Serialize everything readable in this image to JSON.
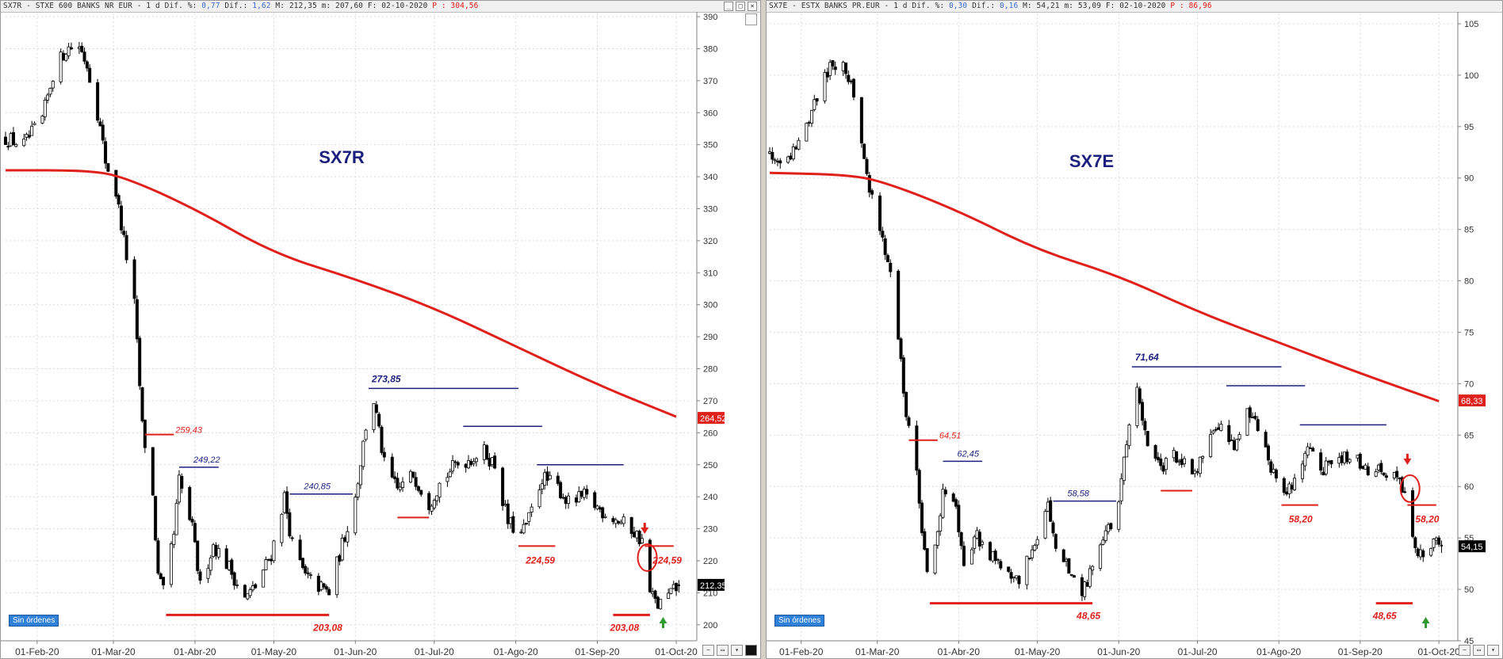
{
  "colors": {
    "ma": "#e0201b",
    "annot_red": "#e0201b",
    "annot_blue": "#1c1f7e",
    "candle": "#000000",
    "arrow_up": "#2e9a2e"
  },
  "status_badge": "Sin órdenes",
  "chart_data": [
    {
      "type": "candlestick",
      "header": {
        "prefix": "SX7R - STXE 600 BANKS NR EUR -  1 d Dif. %: ",
        "pct": "0,77",
        "mid": " Dif.: ",
        "dif": "1,62",
        "rest": " M: 212,35 m: 207,60 F: 02-10-2020 ",
        "pre": "P : 304,56"
      },
      "title": "SX7R",
      "ylim": [
        195,
        391
      ],
      "yticks": [
        200,
        210,
        220,
        230,
        240,
        250,
        260,
        270,
        280,
        290,
        300,
        310,
        320,
        330,
        340,
        350,
        360,
        370,
        380,
        390
      ],
      "ytick_labels": [
        "200",
        "210",
        "220",
        "230",
        "240",
        "250",
        "260",
        "270",
        "280",
        "290",
        "300",
        "310",
        "320",
        "330",
        "340",
        "350",
        "360",
        "370",
        "380",
        "390"
      ],
      "xlim": [
        "2020-01-20",
        "2020-10-07"
      ],
      "x_ticks": [
        "2020-02-01",
        "2020-03-01",
        "2020-04-01",
        "2020-05-01",
        "2020-06-01",
        "2020-07-01",
        "2020-08-01",
        "2020-09-01",
        "2020-10-01"
      ],
      "x_tick_labels": [
        "01-Feb-20",
        "01-Mar-20",
        "01-Abr-20",
        "01-May-20",
        "01-Jun-20",
        "01-Jul-20",
        "01-Ago-20",
        "01-Sep-20",
        "01-Oct-20"
      ],
      "close_series": [
        [
          "2020-01-20",
          352
        ],
        [
          "2020-01-27",
          350
        ],
        [
          "2020-02-03",
          358
        ],
        [
          "2020-02-07",
          372
        ],
        [
          "2020-02-12",
          380
        ],
        [
          "2020-02-17",
          381
        ],
        [
          "2020-02-20",
          375
        ],
        [
          "2020-02-24",
          360
        ],
        [
          "2020-02-27",
          345
        ],
        [
          "2020-03-02",
          335
        ],
        [
          "2020-03-05",
          320
        ],
        [
          "2020-03-09",
          300
        ],
        [
          "2020-03-12",
          262
        ],
        [
          "2020-03-16",
          240
        ],
        [
          "2020-03-18",
          215
        ],
        [
          "2020-03-20",
          210
        ],
        [
          "2020-03-24",
          228
        ],
        [
          "2020-03-26",
          245
        ],
        [
          "2020-03-31",
          230
        ],
        [
          "2020-04-03",
          212
        ],
        [
          "2020-04-08",
          225
        ],
        [
          "2020-04-14",
          218
        ],
        [
          "2020-04-20",
          208
        ],
        [
          "2020-04-24",
          212
        ],
        [
          "2020-04-30",
          222
        ],
        [
          "2020-05-05",
          240
        ],
        [
          "2020-05-08",
          225
        ],
        [
          "2020-05-13",
          215
        ],
        [
          "2020-05-18",
          212
        ],
        [
          "2020-05-22",
          210
        ],
        [
          "2020-05-27",
          225
        ],
        [
          "2020-06-01",
          240
        ],
        [
          "2020-06-05",
          262
        ],
        [
          "2020-06-08",
          270
        ],
        [
          "2020-06-12",
          250
        ],
        [
          "2020-06-17",
          242
        ],
        [
          "2020-06-23",
          247
        ],
        [
          "2020-06-29",
          238
        ],
        [
          "2020-07-03",
          244
        ],
        [
          "2020-07-09",
          250
        ],
        [
          "2020-07-15",
          252
        ],
        [
          "2020-07-20",
          254
        ],
        [
          "2020-07-24",
          250
        ],
        [
          "2020-07-29",
          232
        ],
        [
          "2020-08-03",
          228
        ],
        [
          "2020-08-06",
          233
        ],
        [
          "2020-08-11",
          246
        ],
        [
          "2020-08-17",
          243
        ],
        [
          "2020-08-21",
          238
        ],
        [
          "2020-08-27",
          240
        ],
        [
          "2020-09-02",
          236
        ],
        [
          "2020-09-08",
          233
        ],
        [
          "2020-09-14",
          230
        ],
        [
          "2020-09-18",
          226
        ],
        [
          "2020-09-21",
          210
        ],
        [
          "2020-09-24",
          206
        ],
        [
          "2020-09-28",
          209
        ],
        [
          "2020-10-02",
          212
        ]
      ],
      "series": [
        {
          "name": "",
          "type": "line",
          "color": "#e0201b",
          "points": [
            [
              "2020-01-20",
              342
            ],
            [
              "2020-02-20",
              342
            ],
            [
              "2020-03-05",
              340
            ],
            [
              "2020-04-01",
              330
            ],
            [
              "2020-05-01",
              316
            ],
            [
              "2020-06-01",
              308
            ],
            [
              "2020-07-01",
              299
            ],
            [
              "2020-08-01",
              287
            ],
            [
              "2020-09-01",
              275
            ],
            [
              "2020-10-01",
              265
            ]
          ]
        }
      ],
      "annotations": [
        {
          "label": "259,43",
          "value": 259.43,
          "color": "red",
          "style": "italic-small",
          "x_from": "2020-03-13",
          "x_to": "2020-03-24"
        },
        {
          "label": "249,22",
          "value": 249.22,
          "color": "blue",
          "style": "italic-small",
          "x_from": "2020-03-26",
          "x_to": "2020-04-10"
        },
        {
          "label": "240,85",
          "value": 240.85,
          "color": "blue",
          "style": "italic-small",
          "x_from": "2020-05-07",
          "x_to": "2020-05-31"
        },
        {
          "label": "273,85",
          "value": 273.85,
          "color": "blue",
          "style": "bold",
          "x_from": "2020-06-06",
          "x_to": "2020-08-02"
        },
        {
          "label": "",
          "value": 262.0,
          "color": "blue",
          "style": "line",
          "x_from": "2020-07-12",
          "x_to": "2020-08-11"
        },
        {
          "label": "",
          "value": 250.0,
          "color": "blue",
          "style": "line",
          "x_from": "2020-08-09",
          "x_to": "2020-09-11"
        },
        {
          "label": "",
          "value": 233.5,
          "color": "red",
          "style": "line",
          "x_from": "2020-06-17",
          "x_to": "2020-06-29"
        },
        {
          "label": "224,59",
          "value": 224.59,
          "color": "red",
          "style": "bold",
          "x_from": "2020-08-02",
          "x_to": "2020-08-16"
        },
        {
          "label": "224,59",
          "value": 224.59,
          "color": "red",
          "style": "bold",
          "x_from": "2020-09-19",
          "x_to": "2020-09-30"
        },
        {
          "label": "203,08",
          "value": 203.08,
          "color": "red",
          "style": "bold-thick",
          "x_from": "2020-03-21",
          "x_to": "2020-05-22"
        },
        {
          "label": "203,08",
          "value": 203.08,
          "color": "red",
          "style": "bold-thick",
          "x_from": "2020-09-07",
          "x_to": "2020-09-21"
        }
      ],
      "price_tags": [
        {
          "label": "264,52",
          "value": 264.52,
          "color": "red"
        },
        {
          "label": "212,35",
          "value": 212.35,
          "color": "black"
        }
      ],
      "marker": {
        "arrow_down": "2020-09-19",
        "ellipse": [
          "2020-09-20",
          221
        ],
        "arrow_up": "2020-09-26"
      }
    },
    {
      "type": "candlestick",
      "header": {
        "prefix": "SX7E - ESTX BANKS PR.EUR -  1 d Dif. %: ",
        "pct": "0,30",
        "mid": " Dif.: ",
        "dif": "0,16",
        "rest": " M: 54,21 m: 53,09 F: 02-10-2020 ",
        "pre": "P : 86,96"
      },
      "title": "SX7E",
      "ylim": [
        45,
        106
      ],
      "yticks": [
        45,
        50,
        55,
        60,
        65,
        70,
        75,
        80,
        85,
        90,
        95,
        100,
        105
      ],
      "ytick_labels": [
        "45",
        "50",
        "55",
        "60",
        "65",
        "70",
        "75",
        "80",
        "85",
        "90",
        "95",
        "100",
        "105"
      ],
      "xlim": [
        "2020-01-20",
        "2020-10-07"
      ],
      "x_ticks": [
        "2020-02-01",
        "2020-03-01",
        "2020-04-01",
        "2020-05-01",
        "2020-06-01",
        "2020-07-01",
        "2020-08-01",
        "2020-09-01",
        "2020-10-01"
      ],
      "x_tick_labels": [
        "01-Feb-20",
        "01-Mar-20",
        "01-Abr-20",
        "01-May-20",
        "01-Jun-20",
        "01-Jul-20",
        "01-Ago-20",
        "01-Sep-20",
        "01-Oct-20"
      ],
      "close_series": [
        [
          "2020-01-20",
          92.5
        ],
        [
          "2020-01-27",
          92
        ],
        [
          "2020-02-03",
          95
        ],
        [
          "2020-02-07",
          98
        ],
        [
          "2020-02-12",
          101
        ],
        [
          "2020-02-17",
          101.5
        ],
        [
          "2020-02-20",
          99
        ],
        [
          "2020-02-24",
          94
        ],
        [
          "2020-02-27",
          89
        ],
        [
          "2020-03-02",
          85
        ],
        [
          "2020-03-05",
          82
        ],
        [
          "2020-03-09",
          75
        ],
        [
          "2020-03-12",
          67
        ],
        [
          "2020-03-16",
          62
        ],
        [
          "2020-03-18",
          55
        ],
        [
          "2020-03-20",
          52
        ],
        [
          "2020-03-24",
          55
        ],
        [
          "2020-03-26",
          60
        ],
        [
          "2020-03-31",
          58
        ],
        [
          "2020-04-03",
          52
        ],
        [
          "2020-04-08",
          55
        ],
        [
          "2020-04-14",
          53
        ],
        [
          "2020-04-20",
          52
        ],
        [
          "2020-04-24",
          51
        ],
        [
          "2020-04-30",
          55
        ],
        [
          "2020-05-05",
          58
        ],
        [
          "2020-05-08",
          54
        ],
        [
          "2020-05-13",
          52
        ],
        [
          "2020-05-18",
          50
        ],
        [
          "2020-05-22",
          52
        ],
        [
          "2020-05-27",
          55
        ],
        [
          "2020-06-01",
          59
        ],
        [
          "2020-06-05",
          66
        ],
        [
          "2020-06-08",
          70
        ],
        [
          "2020-06-12",
          64
        ],
        [
          "2020-06-17",
          62
        ],
        [
          "2020-06-23",
          63
        ],
        [
          "2020-06-29",
          61
        ],
        [
          "2020-07-03",
          63
        ],
        [
          "2020-07-09",
          66
        ],
        [
          "2020-07-15",
          64
        ],
        [
          "2020-07-20",
          67
        ],
        [
          "2020-07-24",
          66
        ],
        [
          "2020-07-29",
          62
        ],
        [
          "2020-08-03",
          59
        ],
        [
          "2020-08-06",
          60
        ],
        [
          "2020-08-11",
          63.5
        ],
        [
          "2020-08-17",
          62
        ],
        [
          "2020-08-21",
          61.5
        ],
        [
          "2020-08-27",
          63
        ],
        [
          "2020-09-02",
          62
        ],
        [
          "2020-09-08",
          61.5
        ],
        [
          "2020-09-14",
          61
        ],
        [
          "2020-09-18",
          59
        ],
        [
          "2020-09-21",
          55
        ],
        [
          "2020-09-24",
          53.5
        ],
        [
          "2020-09-28",
          54.5
        ],
        [
          "2020-10-02",
          54.15
        ]
      ],
      "series": [
        {
          "name": "",
          "type": "line",
          "color": "#e0201b",
          "points": [
            [
              "2020-01-20",
              90.5
            ],
            [
              "2020-02-20",
              90.3
            ],
            [
              "2020-03-05",
              89.5
            ],
            [
              "2020-04-01",
              86.8
            ],
            [
              "2020-05-01",
              83
            ],
            [
              "2020-06-01",
              80.5
            ],
            [
              "2020-07-01",
              77
            ],
            [
              "2020-08-01",
              74
            ],
            [
              "2020-09-01",
              71
            ],
            [
              "2020-10-01",
              68.3
            ]
          ]
        }
      ],
      "annotations": [
        {
          "label": "64,51",
          "value": 64.51,
          "color": "red",
          "style": "italic-small",
          "x_from": "2020-03-13",
          "x_to": "2020-03-24"
        },
        {
          "label": "62,45",
          "value": 62.45,
          "color": "blue",
          "style": "italic-small",
          "x_from": "2020-03-26",
          "x_to": "2020-04-10"
        },
        {
          "label": "58,58",
          "value": 58.58,
          "color": "blue",
          "style": "italic-small",
          "x_from": "2020-05-07",
          "x_to": "2020-05-31"
        },
        {
          "label": "71,64",
          "value": 71.64,
          "color": "blue",
          "style": "bold",
          "x_from": "2020-06-06",
          "x_to": "2020-08-02"
        },
        {
          "label": "",
          "value": 69.8,
          "color": "blue",
          "style": "line",
          "x_from": "2020-07-12",
          "x_to": "2020-08-11"
        },
        {
          "label": "",
          "value": 66.0,
          "color": "blue",
          "style": "line",
          "x_from": "2020-08-09",
          "x_to": "2020-09-11"
        },
        {
          "label": "",
          "value": 59.6,
          "color": "red",
          "style": "line",
          "x_from": "2020-06-17",
          "x_to": "2020-06-29"
        },
        {
          "label": "58,20",
          "value": 58.2,
          "color": "red",
          "style": "bold",
          "x_from": "2020-08-02",
          "x_to": "2020-08-16"
        },
        {
          "label": "58,20",
          "value": 58.2,
          "color": "red",
          "style": "bold",
          "x_from": "2020-09-19",
          "x_to": "2020-09-30"
        },
        {
          "label": "48,65",
          "value": 48.65,
          "color": "red",
          "style": "bold-thick",
          "x_from": "2020-03-21",
          "x_to": "2020-05-22"
        },
        {
          "label": "48,65",
          "value": 48.65,
          "color": "red",
          "style": "bold-thick",
          "x_from": "2020-09-07",
          "x_to": "2020-09-21"
        }
      ],
      "price_tags": [
        {
          "label": "68,33",
          "value": 68.33,
          "color": "red"
        },
        {
          "label": "54,15",
          "value": 54.15,
          "color": "black"
        }
      ],
      "marker": {
        "arrow_down": "2020-09-19",
        "ellipse": [
          "2020-09-20",
          59.8
        ],
        "arrow_up": "2020-09-26"
      }
    }
  ]
}
